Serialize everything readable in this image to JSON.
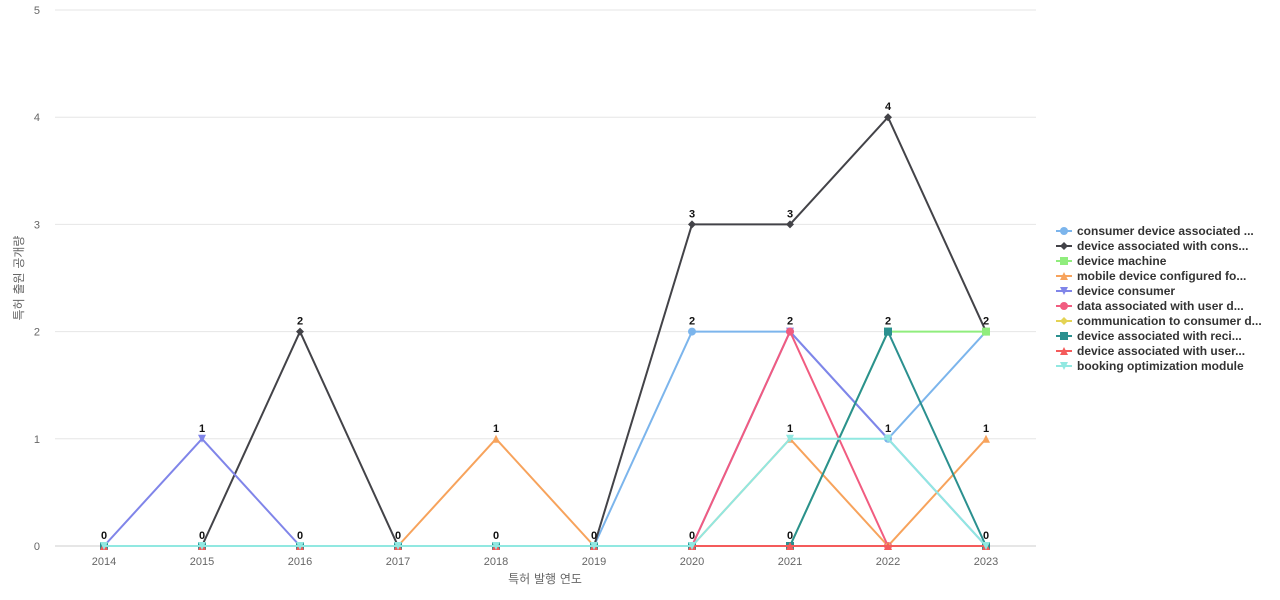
{
  "chart_data": {
    "type": "line",
    "xlabel": "특허 발행 연도",
    "ylabel": "특허 출원 공개량",
    "x": [
      "2014",
      "2015",
      "2016",
      "2017",
      "2018",
      "2019",
      "2020",
      "2021",
      "2022",
      "2023"
    ],
    "ylim": [
      0,
      5
    ],
    "yticks": [
      0,
      1,
      2,
      3,
      4,
      5
    ],
    "grid": true,
    "legend_position": "right",
    "series": [
      {
        "name": "consumer device associated ...",
        "color": "#7cb5ec",
        "marker": "circle",
        "values": [
          0,
          0,
          0,
          0,
          0,
          0,
          2,
          2,
          1,
          2
        ]
      },
      {
        "name": "device associated with cons...",
        "color": "#434348",
        "marker": "diamond",
        "values": [
          0,
          0,
          2,
          0,
          0,
          0,
          3,
          3,
          4,
          2
        ]
      },
      {
        "name": "device machine",
        "color": "#90ed7d",
        "marker": "square",
        "values": [
          0,
          0,
          0,
          0,
          0,
          0,
          0,
          0,
          2,
          2
        ]
      },
      {
        "name": "mobile device configured fo...",
        "color": "#f7a35c",
        "marker": "triangle",
        "values": [
          0,
          0,
          0,
          0,
          1,
          0,
          0,
          1,
          0,
          1
        ]
      },
      {
        "name": "device consumer",
        "color": "#8085e9",
        "marker": "triangle-down",
        "values": [
          0,
          1,
          0,
          0,
          0,
          0,
          0,
          2,
          1,
          0
        ]
      },
      {
        "name": "data associated with user d...",
        "color": "#f15c80",
        "marker": "circle",
        "values": [
          0,
          0,
          0,
          0,
          0,
          0,
          0,
          2,
          0,
          0
        ]
      },
      {
        "name": "communication to consumer d...",
        "color": "#e4d354",
        "marker": "diamond",
        "values": [
          0,
          0,
          0,
          0,
          0,
          0,
          0,
          0,
          0,
          0
        ]
      },
      {
        "name": "device associated with reci...",
        "color": "#2b908f",
        "marker": "square",
        "values": [
          0,
          0,
          0,
          0,
          0,
          0,
          0,
          0,
          2,
          0
        ]
      },
      {
        "name": "device associated with user...",
        "color": "#f45b5b",
        "marker": "triangle",
        "values": [
          0,
          0,
          0,
          0,
          0,
          0,
          0,
          0,
          0,
          0
        ]
      },
      {
        "name": "booking optimization module",
        "color": "#91e8e1",
        "marker": "triangle-down",
        "values": [
          0,
          0,
          0,
          0,
          0,
          0,
          0,
          1,
          1,
          0
        ]
      }
    ],
    "data_labels": [
      {
        "x": "2014",
        "value": 0
      },
      {
        "x": "2015",
        "value": 1
      },
      {
        "x": "2015",
        "value": 0
      },
      {
        "x": "2016",
        "value": 2
      },
      {
        "x": "2016",
        "value": 0
      },
      {
        "x": "2017",
        "value": 0
      },
      {
        "x": "2018",
        "value": 1
      },
      {
        "x": "2018",
        "value": 0
      },
      {
        "x": "2019",
        "value": 0
      },
      {
        "x": "2020",
        "value": 3
      },
      {
        "x": "2020",
        "value": 2
      },
      {
        "x": "2020",
        "value": 0
      },
      {
        "x": "2021",
        "value": 3
      },
      {
        "x": "2021",
        "value": 2
      },
      {
        "x": "2021",
        "value": 1
      },
      {
        "x": "2021",
        "value": 0
      },
      {
        "x": "2022",
        "value": 4
      },
      {
        "x": "2022",
        "value": 2
      },
      {
        "x": "2022",
        "value": 1
      },
      {
        "x": "2023",
        "value": 2
      },
      {
        "x": "2023",
        "value": 1
      },
      {
        "x": "2023",
        "value": 0
      }
    ]
  }
}
